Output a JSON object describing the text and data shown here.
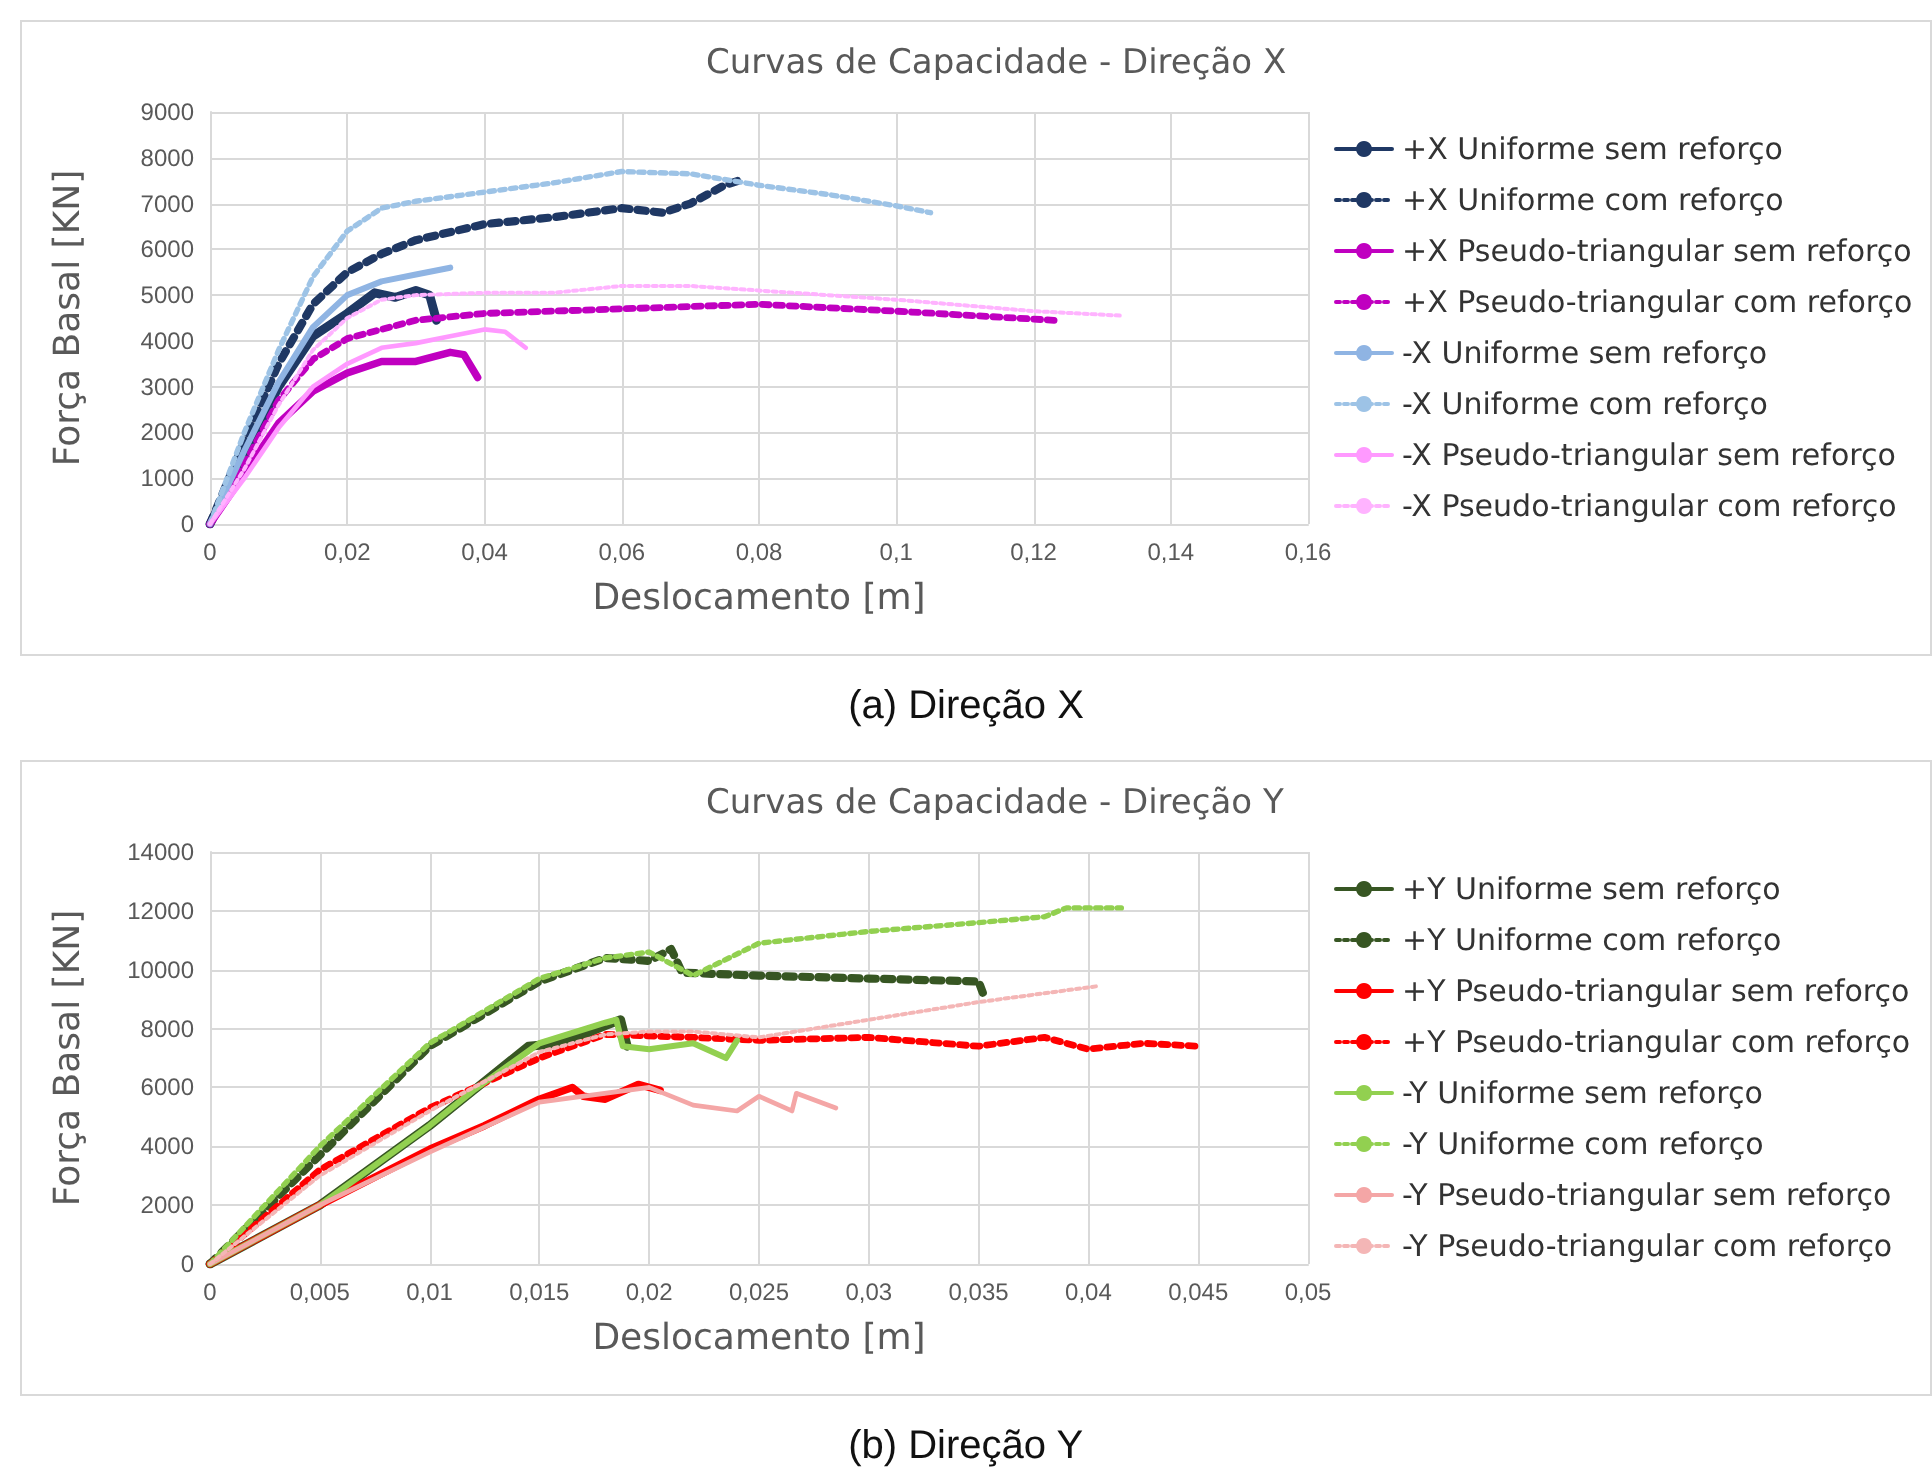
{
  "chart_data": [
    {
      "type": "line",
      "title": "Curvas de Capacidade - Direção X",
      "xlabel": "Deslocamento [m]",
      "ylabel": "Força Basal [KN]",
      "annotations": [
        "(a) Direção X"
      ],
      "xlim": [
        0,
        0.16
      ],
      "xticks": [
        0,
        {
          "value": 0.02,
          "label": "0,02"
        },
        {
          "value": 0.04,
          "label": "0,04"
        },
        {
          "value": 0.06,
          "label": "0,06"
        },
        {
          "value": 0.08,
          "label": "0,08"
        },
        {
          "value": 0.1,
          "label": "0,1"
        },
        {
          "value": 0.12,
          "label": "0,12"
        },
        {
          "value": 0.14,
          "label": "0,14"
        },
        {
          "value": 0.16,
          "label": "0,16"
        }
      ],
      "ylim": [
        0,
        9000
      ],
      "yticks": [
        0,
        1000,
        2000,
        3000,
        4000,
        5000,
        6000,
        7000,
        8000,
        9000
      ],
      "grid": true,
      "legend": "right",
      "marker": "none",
      "series": [
        {
          "name": "+X Uniforme sem reforço",
          "color": "#1f3864",
          "line_style": "solid",
          "x": [
            0,
            0.005,
            0.01,
            0.015,
            0.02,
            0.024,
            0.027,
            0.03,
            0.032,
            0.033
          ],
          "values": [
            0,
            1500,
            3000,
            4100,
            4600,
            5050,
            4950,
            5100,
            5000,
            4450
          ]
        },
        {
          "name": "+X Uniforme com reforço",
          "color": "#1f3864",
          "line_style": "dotted",
          "x": [
            0,
            0.005,
            0.01,
            0.015,
            0.02,
            0.025,
            0.03,
            0.04,
            0.05,
            0.06,
            0.066,
            0.07,
            0.075,
            0.077
          ],
          "values": [
            0,
            1800,
            3500,
            4800,
            5500,
            5900,
            6200,
            6550,
            6700,
            6900,
            6800,
            7000,
            7400,
            7500
          ]
        },
        {
          "name": "+X Pseudo-triangular sem reforço",
          "color": "#c000c0",
          "line_style": "solid",
          "x": [
            0,
            0.005,
            0.01,
            0.015,
            0.02,
            0.025,
            0.03,
            0.035,
            0.037,
            0.039
          ],
          "values": [
            0,
            1100,
            2200,
            2900,
            3300,
            3550,
            3550,
            3750,
            3700,
            3200
          ]
        },
        {
          "name": "+X Pseudo-triangular com reforço",
          "color": "#c000c0",
          "line_style": "dotted",
          "x": [
            0,
            0.005,
            0.01,
            0.015,
            0.02,
            0.03,
            0.04,
            0.06,
            0.08,
            0.1,
            0.123
          ],
          "values": [
            0,
            1300,
            2700,
            3600,
            4050,
            4450,
            4600,
            4700,
            4800,
            4650,
            4450
          ]
        },
        {
          "name": "-X Uniforme sem reforço",
          "color": "#8fb4e3",
          "line_style": "solid",
          "x": [
            0,
            0.005,
            0.01,
            0.015,
            0.02,
            0.025,
            0.03,
            0.035
          ],
          "values": [
            0,
            1600,
            3100,
            4300,
            5000,
            5300,
            5450,
            5600
          ]
        },
        {
          "name": "-X Uniforme com reforço",
          "color": "#9dc3e6",
          "line_style": "dotted",
          "x": [
            0,
            0.005,
            0.01,
            0.015,
            0.02,
            0.025,
            0.03,
            0.04,
            0.05,
            0.06,
            0.07,
            0.08,
            0.09,
            0.1,
            0.105
          ],
          "values": [
            0,
            2000,
            3800,
            5400,
            6400,
            6900,
            7050,
            7250,
            7450,
            7700,
            7650,
            7400,
            7200,
            6950,
            6800
          ]
        },
        {
          "name": "-X Pseudo-triangular sem reforço",
          "color": "#ff99ff",
          "line_style": "solid",
          "x": [
            0,
            0.005,
            0.01,
            0.015,
            0.02,
            0.025,
            0.03,
            0.035,
            0.04,
            0.043,
            0.046
          ],
          "values": [
            0,
            1000,
            2100,
            3000,
            3500,
            3850,
            3950,
            4100,
            4250,
            4200,
            3850
          ]
        },
        {
          "name": "-X Pseudo-triangular com reforço",
          "color": "#ffb3ff",
          "line_style": "dotted",
          "x": [
            0,
            0.005,
            0.01,
            0.015,
            0.02,
            0.025,
            0.03,
            0.04,
            0.05,
            0.06,
            0.07,
            0.08,
            0.1,
            0.12,
            0.133
          ],
          "values": [
            0,
            1200,
            2600,
            3800,
            4500,
            4900,
            5000,
            5050,
            5050,
            5200,
            5200,
            5100,
            4900,
            4650,
            4550
          ]
        }
      ]
    },
    {
      "type": "line",
      "title": "Curvas de Capacidade - Direção Y",
      "xlabel": "Deslocamento [m]",
      "ylabel": "Força Basal [KN]",
      "annotations": [
        "(b) Direção Y"
      ],
      "xlim": [
        0,
        0.05
      ],
      "xticks": [
        0,
        {
          "value": 0.005,
          "label": "0,005"
        },
        {
          "value": 0.01,
          "label": "0,01"
        },
        {
          "value": 0.015,
          "label": "0,015"
        },
        {
          "value": 0.02,
          "label": "0,02"
        },
        {
          "value": 0.025,
          "label": "0,025"
        },
        {
          "value": 0.03,
          "label": "0,03"
        },
        {
          "value": 0.035,
          "label": "0,035"
        },
        {
          "value": 0.04,
          "label": "0,04"
        },
        {
          "value": 0.045,
          "label": "0,045"
        },
        {
          "value": 0.05,
          "label": "0,05"
        }
      ],
      "ylim": [
        0,
        14000
      ],
      "yticks": [
        0,
        2000,
        4000,
        6000,
        8000,
        10000,
        12000,
        14000
      ],
      "grid": true,
      "legend": "right",
      "marker": "none",
      "series": [
        {
          "name": "+Y Uniforme sem reforço",
          "color": "#375623",
          "line_style": "solid",
          "x": [
            0,
            0.005,
            0.01,
            0.012,
            0.0145,
            0.016,
            0.018,
            0.0187,
            0.019
          ],
          "values": [
            0,
            2000,
            4700,
            5900,
            7400,
            7500,
            8100,
            8300,
            7400
          ]
        },
        {
          "name": "+Y Uniforme com reforço",
          "color": "#375623",
          "line_style": "dotted",
          "x": [
            0,
            0.005,
            0.01,
            0.015,
            0.018,
            0.02,
            0.021,
            0.0215,
            0.025,
            0.03,
            0.035,
            0.0353
          ],
          "values": [
            0,
            3700,
            7400,
            9600,
            10400,
            10300,
            10700,
            9900,
            9800,
            9700,
            9600,
            9000
          ]
        },
        {
          "name": "+Y Pseudo-triangular sem reforço",
          "color": "#ff0000",
          "line_style": "solid",
          "x": [
            0,
            0.005,
            0.01,
            0.0125,
            0.015,
            0.0165,
            0.017,
            0.018,
            0.0195,
            0.0205
          ],
          "values": [
            0,
            2000,
            3900,
            4700,
            5600,
            6000,
            5700,
            5600,
            6100,
            5900
          ]
        },
        {
          "name": "+Y Pseudo-triangular com reforço",
          "color": "#ff0000",
          "line_style": "dotted",
          "x": [
            0,
            0.005,
            0.01,
            0.015,
            0.018,
            0.022,
            0.025,
            0.03,
            0.035,
            0.038,
            0.04,
            0.0425,
            0.045
          ],
          "values": [
            0,
            3200,
            5300,
            7000,
            7800,
            7700,
            7600,
            7700,
            7400,
            7700,
            7300,
            7500,
            7400
          ]
        },
        {
          "name": "-Y Uniforme sem reforço",
          "color": "#92d050",
          "line_style": "solid",
          "x": [
            0,
            0.005,
            0.01,
            0.012,
            0.015,
            0.018,
            0.0185,
            0.0188,
            0.02,
            0.022,
            0.0235,
            0.024
          ],
          "values": [
            0,
            2000,
            4700,
            5900,
            7500,
            8200,
            8300,
            7400,
            7300,
            7500,
            7000,
            7600
          ]
        },
        {
          "name": "-Y Uniforme com reforço",
          "color": "#92d050",
          "line_style": "dotted",
          "x": [
            0,
            0.005,
            0.01,
            0.015,
            0.018,
            0.02,
            0.022,
            0.025,
            0.03,
            0.035,
            0.038,
            0.039,
            0.0415
          ],
          "values": [
            0,
            4000,
            7500,
            9700,
            10400,
            10600,
            9800,
            10900,
            11300,
            11600,
            11800,
            12100,
            12100
          ]
        },
        {
          "name": "-Y Pseudo-triangular sem reforço",
          "color": "#f4a6a6",
          "line_style": "solid",
          "x": [
            0,
            0.005,
            0.01,
            0.015,
            0.02,
            0.022,
            0.024,
            0.025,
            0.0265,
            0.0267,
            0.0285
          ],
          "values": [
            0,
            2000,
            3800,
            5500,
            6000,
            5400,
            5200,
            5700,
            5200,
            5800,
            5300
          ]
        },
        {
          "name": "-Y Pseudo-triangular com reforço",
          "color": "#f4b6b6",
          "line_style": "dotted",
          "x": [
            0,
            0.005,
            0.01,
            0.015,
            0.018,
            0.02,
            0.022,
            0.025,
            0.03,
            0.035,
            0.04,
            0.0405
          ],
          "values": [
            0,
            3000,
            5200,
            7200,
            7800,
            7900,
            7900,
            7700,
            8300,
            8900,
            9400,
            9450
          ]
        }
      ]
    }
  ]
}
